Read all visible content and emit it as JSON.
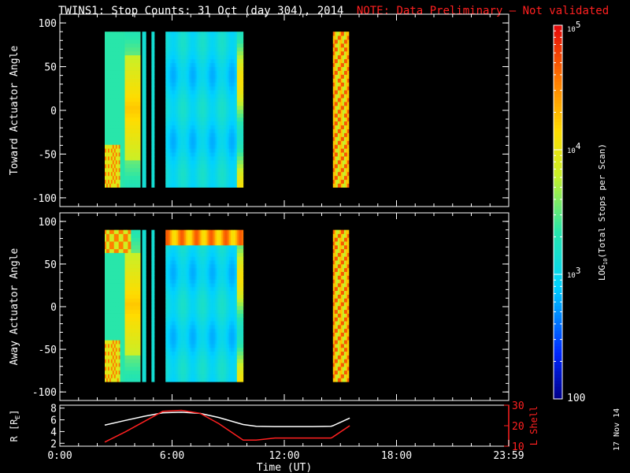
{
  "title": "TWINS1: Stop Counts: 31 Oct (day 304), 2014",
  "note": "NOTE: Data Preliminary — Not validated",
  "side_date": "17 Nov 14",
  "colors": {
    "background": "#000000",
    "axis": "#ffffff",
    "note": "#ff2020",
    "r_line": "#ffffff",
    "lshell_line": "#ff2020"
  },
  "chart_data": [
    {
      "type": "heatmap",
      "panel": "toward",
      "ylabel": "Toward Actuator Angle",
      "xlim": [
        0,
        24
      ],
      "ylim": [
        -110,
        110
      ],
      "yticks": [
        -100,
        -50,
        0,
        50,
        100
      ],
      "data_y_range": [
        -88,
        90
      ],
      "segments": [
        {
          "start": 2.4,
          "end": 4.3
        },
        {
          "start": 4.4,
          "end": 4.6
        },
        {
          "start": 4.9,
          "end": 5.05
        },
        {
          "start": 5.65,
          "end": 9.8
        },
        {
          "start": 14.6,
          "end": 15.45
        }
      ]
    },
    {
      "type": "heatmap",
      "panel": "away",
      "ylabel": "Away Actuator Angle",
      "xlim": [
        0,
        24
      ],
      "ylim": [
        -110,
        110
      ],
      "yticks": [
        -100,
        -50,
        0,
        50,
        100
      ],
      "data_y_range": [
        -88,
        90
      ],
      "segments": [
        {
          "start": 2.4,
          "end": 4.3
        },
        {
          "start": 4.4,
          "end": 4.6
        },
        {
          "start": 4.9,
          "end": 5.05
        },
        {
          "start": 5.65,
          "end": 9.8
        },
        {
          "start": 14.6,
          "end": 15.45
        }
      ]
    },
    {
      "type": "line",
      "panel": "orbit",
      "ylabel": "R [R",
      "ylabel_sub": "E",
      "ylabel_close": "]",
      "y2label": "L Shell",
      "xlabel": "Time (UT)",
      "xlim": [
        0,
        24
      ],
      "xticks": [
        0,
        6,
        12,
        18,
        24
      ],
      "xtick_labels": [
        "0:00",
        "6:00",
        "12:00",
        "18:00",
        "23:59"
      ],
      "ylim": [
        1.5,
        8.5
      ],
      "yticks": [
        2,
        4,
        6,
        8
      ],
      "y2lim": [
        10,
        30
      ],
      "y2ticks": [
        10,
        20,
        30
      ],
      "series": [
        {
          "axis": "left",
          "color": "#ffffff",
          "x": [
            2.4,
            3.5,
            4.5,
            5.5,
            6.5,
            7.5,
            8.5,
            9.8,
            10.5,
            11.5,
            12.5,
            13.5,
            14.5,
            14.6,
            15.5
          ],
          "y": [
            5.1,
            5.9,
            6.6,
            7.2,
            7.3,
            7.1,
            6.4,
            5.2,
            4.9,
            4.85,
            4.85,
            4.85,
            4.9,
            5.0,
            6.3
          ]
        },
        {
          "axis": "right",
          "color": "#ff2020",
          "x": [
            2.4,
            3.5,
            4.5,
            5.5,
            6.5,
            7.5,
            8.5,
            9.8,
            10.5,
            11.5,
            12.5,
            13.5,
            14.5,
            14.6,
            15.5
          ],
          "y": [
            12,
            17,
            22,
            27,
            27.5,
            26,
            21,
            13,
            13,
            14,
            14,
            14,
            14,
            14.5,
            20
          ]
        }
      ]
    },
    {
      "type": "colorbar",
      "label": "LOG",
      "label_sub": "10",
      "label_rest": "(Total Stops per Scan)",
      "range": [
        100,
        100000
      ],
      "scale": "log",
      "tick_labels": [
        "10",
        "5",
        "10",
        "4",
        "10",
        "3",
        "100"
      ]
    }
  ]
}
